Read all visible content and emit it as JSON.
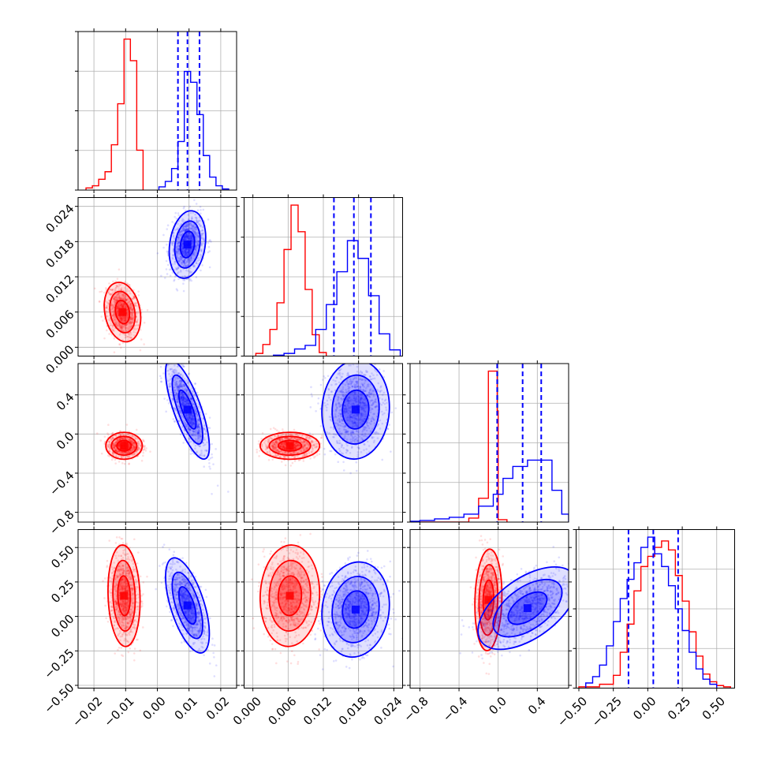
{
  "chart_data": {
    "type": "corner",
    "dimensions": [
      {
        "range": [
          -0.025,
          0.025
        ],
        "ticks": [
          -0.02,
          -0.01,
          0.0,
          0.01,
          0.02
        ],
        "tick_labels": [
          "−0.02",
          "−0.01",
          "0.00",
          "0.01",
          "0.02"
        ]
      },
      {
        "range": [
          -0.0015,
          0.0255
        ],
        "ticks": [
          0.0,
          0.006,
          0.012,
          0.018,
          0.024
        ],
        "tick_labels": [
          "0.000",
          "0.006",
          "0.012",
          "0.018",
          "0.024"
        ]
      },
      {
        "range": [
          -0.9,
          0.72
        ],
        "ticks": [
          -0.8,
          -0.4,
          0.0,
          0.4
        ],
        "tick_labels": [
          "−0.8",
          "−0.4",
          "0.0",
          "0.4"
        ]
      },
      {
        "range": [
          -0.52,
          0.63
        ],
        "ticks": [
          -0.5,
          -0.25,
          0.0,
          0.25,
          0.5
        ],
        "tick_labels": [
          "−0.50",
          "−0.25",
          "0.00",
          "0.25",
          "0.50"
        ]
      }
    ],
    "series": [
      {
        "color": "#ff0000",
        "histograms": [
          {
            "bins": [
              -0.0225,
              -0.0205,
              -0.0185,
              -0.0165,
              -0.0145,
              -0.0125,
              -0.0105,
              -0.0085,
              -0.0065,
              -0.0045
            ],
            "counts": [
              2,
              4,
              10,
              17,
              42,
              80,
              140,
              120,
              37,
              0
            ]
          },
          {
            "bins": [
              0.0005,
              0.0017,
              0.0029,
              0.0041,
              0.0053,
              0.0065,
              0.0077,
              0.0089,
              0.0101,
              0.0113,
              0.0125
            ],
            "counts": [
              3,
              13,
              30,
              60,
              120,
              170,
              140,
              75,
              24,
              4
            ]
          },
          {
            "bins": [
              -0.9,
              -0.3,
              -0.2,
              -0.1,
              -0.01,
              0.0,
              0.09
            ],
            "counts": [
              0,
              5,
              30,
              190,
              140,
              3
            ]
          },
          {
            "bins": [
              -0.5,
              -0.35,
              -0.25,
              -0.2,
              -0.15,
              -0.1,
              -0.05,
              0.0,
              0.05,
              0.1,
              0.15,
              0.2,
              0.25,
              0.3,
              0.35,
              0.4,
              0.45,
              0.5,
              0.55,
              0.6
            ],
            "counts": [
              1,
              3,
              10,
              28,
              50,
              76,
              95,
              103,
              110,
              115,
              108,
              88,
              68,
              44,
              25,
              11,
              5,
              2,
              1
            ]
          }
        ],
        "blobs": [
          {
            "dims": [
              0,
              1
            ],
            "center": [
              -0.011,
              0.006
            ],
            "sd": [
              0.0025,
              0.0022
            ],
            "rho": -0.2
          },
          {
            "dims": [
              0,
              2
            ],
            "center": [
              -0.0105,
              -0.12
            ],
            "sd": [
              0.0025,
              0.06
            ],
            "rho": 0.0
          },
          {
            "dims": [
              1,
              2
            ],
            "center": [
              0.0063,
              -0.12
            ],
            "sd": [
              0.0022,
              0.06
            ],
            "rho": 0.0
          },
          {
            "dims": [
              0,
              3
            ],
            "center": [
              -0.0105,
              0.15
            ],
            "sd": [
              0.0022,
              0.16
            ],
            "rho": -0.1
          },
          {
            "dims": [
              1,
              3
            ],
            "center": [
              0.0063,
              0.15
            ],
            "sd": [
              0.0022,
              0.16
            ],
            "rho": 0.05
          },
          {
            "dims": [
              2,
              3
            ],
            "center": [
              -0.1,
              0.12
            ],
            "sd": [
              0.06,
              0.16
            ],
            "rho": 0.1
          }
        ]
      },
      {
        "color": "#0000ff",
        "histograms": [
          {
            "bins": [
              0.0005,
              0.0025,
              0.0045,
              0.0065,
              0.0085,
              0.0105,
              0.0125,
              0.0145,
              0.0165,
              0.0185,
              0.0205,
              0.0225
            ],
            "counts": [
              3,
              8,
              20,
              45,
              110,
              100,
              70,
              32,
              12,
              4,
              1
            ]
          },
          {
            "bins": [
              0.0035,
              0.0053,
              0.0071,
              0.0089,
              0.0107,
              0.0125,
              0.0143,
              0.0161,
              0.0179,
              0.0197,
              0.0215,
              0.0233,
              0.0251
            ],
            "counts": [
              1,
              3,
              8,
              12,
              30,
              58,
              95,
              130,
              110,
              68,
              25,
              7
            ]
          },
          {
            "bins": [
              -0.9,
              -0.8,
              -0.65,
              -0.5,
              -0.35,
              -0.2,
              -0.05,
              0.05,
              0.15,
              0.3,
              0.45,
              0.55,
              0.65,
              0.72
            ],
            "counts": [
              1,
              2,
              4,
              6,
              10,
              20,
              35,
              55,
              70,
              78,
              78,
              40,
              10
            ]
          },
          {
            "bins": [
              -0.45,
              -0.4,
              -0.35,
              -0.3,
              -0.25,
              -0.2,
              -0.15,
              -0.1,
              -0.05,
              0.0,
              0.05,
              0.1,
              0.15,
              0.2,
              0.25,
              0.3,
              0.35,
              0.4,
              0.45,
              0.5
            ],
            "counts": [
              4,
              9,
              18,
              33,
              52,
              70,
              85,
              98,
              110,
              118,
              105,
              95,
              80,
              62,
              45,
              28,
              15,
              7,
              3
            ]
          }
        ],
        "quantiles": [
          [
            0.0065,
            0.0095,
            0.0133
          ],
          [
            0.0138,
            0.0172,
            0.0201
          ],
          [
            -0.01,
            0.25,
            0.44
          ],
          [
            -0.14,
            0.04,
            0.22
          ]
        ],
        "blobs": [
          {
            "dims": [
              0,
              1
            ],
            "center": [
              0.0095,
              0.0175
            ],
            "sd": [
              0.0025,
              0.0025
            ],
            "rho": 0.2
          },
          {
            "dims": [
              0,
              2
            ],
            "center": [
              0.0095,
              0.25
            ],
            "sd": [
              0.003,
              0.22
            ],
            "rho": -0.75
          },
          {
            "dims": [
              1,
              2
            ],
            "center": [
              0.0175,
              0.25
            ],
            "sd": [
              0.0025,
              0.22
            ],
            "rho": 0.05
          },
          {
            "dims": [
              0,
              3
            ],
            "center": [
              0.0095,
              0.08
            ],
            "sd": [
              0.003,
              0.15
            ],
            "rho": -0.6
          },
          {
            "dims": [
              1,
              3
            ],
            "center": [
              0.0175,
              0.05
            ],
            "sd": [
              0.0025,
              0.15
            ],
            "rho": 0.1
          },
          {
            "dims": [
              2,
              3
            ],
            "center": [
              0.3,
              0.06
            ],
            "sd": [
              0.22,
              0.13
            ],
            "rho": 0.55
          }
        ]
      }
    ],
    "grid": true,
    "xlabel": "",
    "ylabel": "",
    "title": ""
  }
}
